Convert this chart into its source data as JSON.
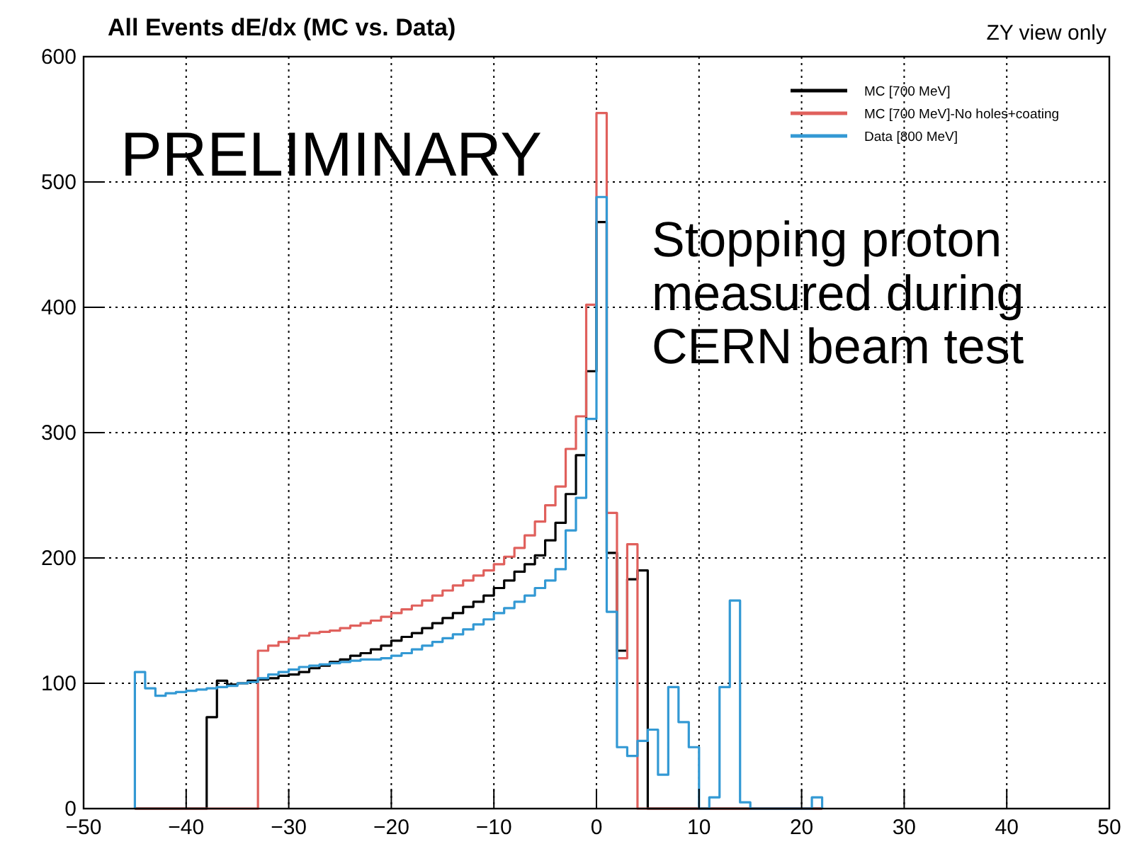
{
  "chart_data": {
    "type": "histogram",
    "title": "All Events dE/dx (MC vs. Data)",
    "annotations": [
      "ZY view only",
      "PRELIMINARY",
      "Stopping proton\nmeasured during\nCERN beam test"
    ],
    "bins": [
      -45,
      -44,
      -43,
      -42,
      -41,
      -40,
      -39,
      -38,
      -37,
      -36,
      -35,
      -34,
      -33,
      -32,
      -31,
      -30,
      -29,
      -28,
      -27,
      -26,
      -25,
      -24,
      -23,
      -22,
      -21,
      -20,
      -19,
      -18,
      -17,
      -16,
      -15,
      -14,
      -13,
      -12,
      -11,
      -10,
      -9,
      -8,
      -7,
      -6,
      -5,
      -4,
      -3,
      -2,
      -1,
      0,
      1,
      2,
      3,
      4,
      5,
      6,
      7,
      8,
      9,
      10,
      11,
      12,
      13,
      14,
      15,
      16,
      17,
      18,
      19,
      20,
      21,
      22
    ],
    "series": [
      {
        "name": "MC [700 MeV]",
        "color": "#000000",
        "values": [
          0,
          0,
          0,
          0,
          0,
          0,
          0,
          73,
          102,
          99,
          100,
          102,
          103,
          104,
          106,
          107,
          109,
          112,
          114,
          117,
          119,
          122,
          124,
          127,
          130,
          134,
          137,
          140,
          144,
          148,
          152,
          156,
          161,
          165,
          170,
          176,
          182,
          189,
          195,
          202,
          214,
          228,
          251,
          282,
          349,
          468,
          204,
          126,
          183,
          190,
          0,
          0,
          0,
          0,
          0,
          0,
          0,
          0,
          0,
          0,
          0,
          0,
          0,
          0,
          0,
          0,
          0
        ]
      },
      {
        "name": "MC [700 MeV]-No holes+coating",
        "color": "#e0605c",
        "values": [
          0,
          0,
          0,
          0,
          0,
          0,
          0,
          0,
          0,
          0,
          0,
          0,
          126,
          130,
          133,
          136,
          138,
          140,
          141,
          142,
          144,
          146,
          148,
          150,
          153,
          156,
          159,
          162,
          166,
          170,
          174,
          178,
          182,
          186,
          190,
          195,
          201,
          208,
          218,
          229,
          242,
          257,
          287,
          313,
          402,
          555,
          236,
          120,
          211,
          0,
          0,
          0,
          0,
          0,
          0,
          0,
          0,
          0,
          0,
          0,
          0,
          0,
          0,
          0,
          0,
          0,
          0
        ]
      },
      {
        "name": "Data [800 MeV]",
        "color": "#3399d4",
        "values": [
          109,
          96,
          90,
          92,
          93,
          94,
          95,
          96,
          97,
          98,
          100,
          101,
          104,
          107,
          109,
          111,
          113,
          114,
          115,
          116,
          117,
          118,
          119,
          119,
          120,
          122,
          124,
          127,
          130,
          133,
          136,
          139,
          143,
          147,
          151,
          156,
          160,
          165,
          170,
          176,
          182,
          191,
          222,
          248,
          311,
          488,
          157,
          49,
          42,
          54,
          63,
          27,
          97,
          69,
          49,
          0,
          9,
          97,
          166,
          5,
          0,
          0,
          0,
          0,
          0,
          0,
          9
        ]
      }
    ],
    "xlim": [
      -50,
      50
    ],
    "xticks": [
      -50,
      -40,
      -30,
      -20,
      -10,
      0,
      10,
      20,
      30,
      40,
      50
    ],
    "ylim": [
      0,
      600
    ],
    "yticks": [
      0,
      100,
      200,
      300,
      400,
      500,
      600
    ],
    "grid": true,
    "legend": "top right"
  }
}
